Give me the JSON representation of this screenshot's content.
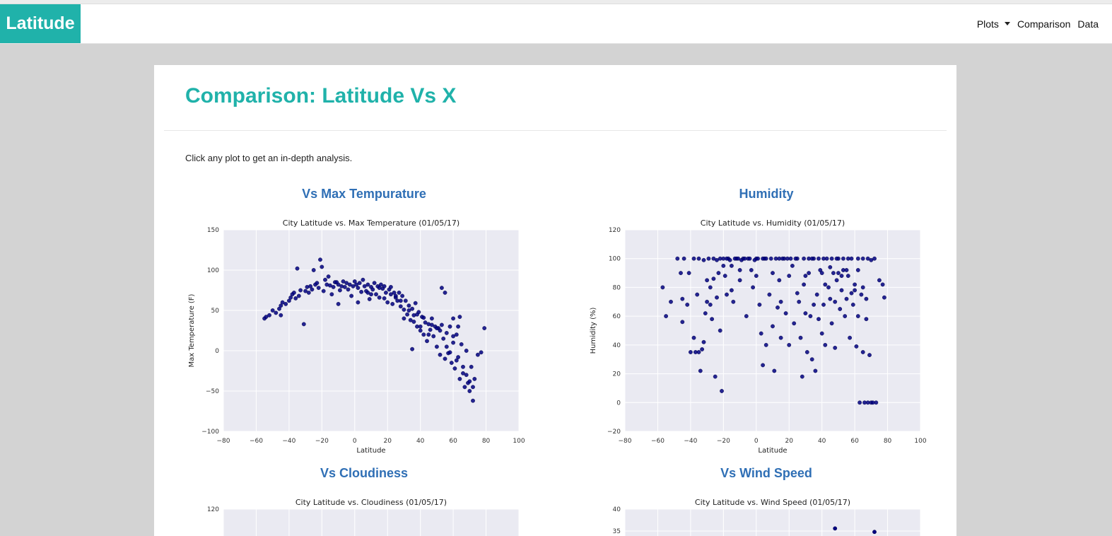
{
  "navbar": {
    "brand": "Latitude",
    "items": [
      {
        "label": "Plots",
        "has_dropdown": true
      },
      {
        "label": "Comparison"
      },
      {
        "label": "Data"
      }
    ]
  },
  "page": {
    "title": "Comparison: Latitude Vs X",
    "intro": "Click any plot to get an in-depth analysis."
  },
  "colors": {
    "brand": "#20b2aa",
    "heading": "#2f6fb5",
    "plot_bg": "#eaeaf2",
    "marker": "#000080"
  },
  "chart_data": [
    {
      "heading": "Vs Max Tempurature",
      "type": "scatter",
      "title": "City Latitude vs. Max Temperature (01/05/17)",
      "xlabel": "Latitude",
      "ylabel": "Max Temperature (F)",
      "xlim": [
        -80,
        100
      ],
      "ylim": [
        -100,
        150
      ],
      "xticks": [
        -80,
        -60,
        -40,
        -20,
        0,
        20,
        40,
        60,
        80,
        100
      ],
      "yticks": [
        -100,
        -50,
        0,
        50,
        100,
        150
      ],
      "grid": true,
      "points": [
        [
          -55,
          40
        ],
        [
          -54,
          42
        ],
        [
          -52,
          44
        ],
        [
          -48,
          47
        ],
        [
          -46,
          52
        ],
        [
          -45,
          56
        ],
        [
          -44,
          60
        ],
        [
          -42,
          58
        ],
        [
          -40,
          62
        ],
        [
          -39,
          66
        ],
        [
          -38,
          70
        ],
        [
          -37,
          72
        ],
        [
          -36,
          65
        ],
        [
          -35,
          102
        ],
        [
          -34,
          68
        ],
        [
          -33,
          75
        ],
        [
          -31,
          33
        ],
        [
          -30,
          74
        ],
        [
          -29,
          79
        ],
        [
          -28,
          72
        ],
        [
          -27,
          80
        ],
        [
          -26,
          76
        ],
        [
          -25,
          100
        ],
        [
          -24,
          82
        ],
        [
          -23,
          84
        ],
        [
          -22,
          78
        ],
        [
          -21,
          113
        ],
        [
          -20,
          104
        ],
        [
          -19,
          74
        ],
        [
          -18,
          88
        ],
        [
          -17,
          82
        ],
        [
          -16,
          92
        ],
        [
          -15,
          81
        ],
        [
          -14,
          70
        ],
        [
          -13,
          79
        ],
        [
          -12,
          85
        ],
        [
          -11,
          85
        ],
        [
          -10,
          82
        ],
        [
          -9,
          75
        ],
        [
          -8,
          80
        ],
        [
          -7,
          86
        ],
        [
          -6,
          79
        ],
        [
          -5,
          84
        ],
        [
          -4,
          76
        ],
        [
          -3,
          82
        ],
        [
          -2,
          68
        ],
        [
          -1,
          80
        ],
        [
          0,
          86
        ],
        [
          1,
          82
        ],
        [
          2,
          78
        ],
        [
          3,
          84
        ],
        [
          4,
          73
        ],
        [
          5,
          88
        ],
        [
          6,
          80
        ],
        [
          7,
          74
        ],
        [
          8,
          82
        ],
        [
          9,
          64
        ],
        [
          10,
          79
        ],
        [
          11,
          76
        ],
        [
          12,
          84
        ],
        [
          13,
          70
        ],
        [
          14,
          80
        ],
        [
          15,
          66
        ],
        [
          16,
          82
        ],
        [
          17,
          77
        ],
        [
          18,
          80
        ],
        [
          19,
          72
        ],
        [
          20,
          60
        ],
        [
          21,
          76
        ],
        [
          22,
          79
        ],
        [
          23,
          58
        ],
        [
          24,
          72
        ],
        [
          25,
          66
        ],
        [
          26,
          62
        ],
        [
          27,
          72
        ],
        [
          28,
          55
        ],
        [
          29,
          68
        ],
        [
          30,
          51
        ],
        [
          31,
          62
        ],
        [
          32,
          45
        ],
        [
          33,
          56
        ],
        [
          34,
          38
        ],
        [
          35,
          52
        ],
        [
          36,
          44
        ],
        [
          37,
          59
        ],
        [
          38,
          30
        ],
        [
          39,
          48
        ],
        [
          40,
          25
        ],
        [
          41,
          42
        ],
        [
          42,
          20
        ],
        [
          43,
          35
        ],
        [
          44,
          12
        ],
        [
          45,
          33
        ],
        [
          46,
          26
        ],
        [
          47,
          40
        ],
        [
          48,
          18
        ],
        [
          49,
          30
        ],
        [
          50,
          5
        ],
        [
          51,
          28
        ],
        [
          52,
          -5
        ],
        [
          53,
          32
        ],
        [
          54,
          15
        ],
        [
          55,
          -10
        ],
        [
          56,
          22
        ],
        [
          57,
          -3
        ],
        [
          58,
          30
        ],
        [
          59,
          -15
        ],
        [
          60,
          10
        ],
        [
          61,
          -22
        ],
        [
          62,
          20
        ],
        [
          63,
          -8
        ],
        [
          64,
          -35
        ],
        [
          65,
          8
        ],
        [
          66,
          -28
        ],
        [
          67,
          -45
        ],
        [
          68,
          0
        ],
        [
          69,
          -40
        ],
        [
          70,
          -50
        ],
        [
          71,
          -20
        ],
        [
          72,
          -62
        ],
        [
          73,
          -35
        ],
        [
          75,
          -5
        ],
        [
          77,
          -2
        ],
        [
          79,
          28
        ],
        [
          53,
          78
        ],
        [
          55,
          72
        ],
        [
          38,
          45
        ],
        [
          42,
          41
        ],
        [
          35,
          2
        ],
        [
          60,
          40
        ],
        [
          64,
          42
        ],
        [
          -45,
          44
        ],
        [
          -50,
          50
        ],
        [
          -10,
          58
        ],
        [
          2,
          60
        ],
        [
          8,
          72
        ],
        [
          10,
          70
        ],
        [
          18,
          65
        ],
        [
          22,
          70
        ],
        [
          30,
          40
        ],
        [
          36,
          36
        ],
        [
          45,
          20
        ],
        [
          50,
          28
        ],
        [
          56,
          5
        ],
        [
          58,
          -2
        ],
        [
          62,
          -12
        ],
        [
          66,
          -20
        ],
        [
          68,
          -30
        ],
        [
          70,
          -38
        ],
        [
          72,
          -45
        ],
        [
          15,
          78
        ],
        [
          25,
          68
        ],
        [
          28,
          62
        ],
        [
          33,
          50
        ],
        [
          40,
          30
        ],
        [
          47,
          32
        ],
        [
          52,
          25
        ],
        [
          60,
          18
        ],
        [
          63,
          30
        ]
      ]
    },
    {
      "heading": "Humidity",
      "type": "scatter",
      "title": "City Latitude vs. Humidity (01/05/17)",
      "xlabel": "Latitude",
      "ylabel": "Humidity (%)",
      "xlim": [
        -80,
        100
      ],
      "ylim": [
        -20,
        120
      ],
      "xticks": [
        -80,
        -60,
        -40,
        -20,
        0,
        20,
        40,
        60,
        80,
        100
      ],
      "yticks": [
        -20,
        0,
        20,
        40,
        60,
        80,
        100,
        120
      ],
      "grid": true,
      "points": [
        [
          -57,
          80
        ],
        [
          -55,
          60
        ],
        [
          -52,
          70
        ],
        [
          -48,
          100
        ],
        [
          -46,
          90
        ],
        [
          -45,
          56
        ],
        [
          -45,
          72
        ],
        [
          -42,
          68
        ],
        [
          -41,
          90
        ],
        [
          -40,
          35
        ],
        [
          -38,
          45
        ],
        [
          -37,
          35
        ],
        [
          -36,
          75
        ],
        [
          -35,
          35
        ],
        [
          -34,
          22
        ],
        [
          -33,
          37
        ],
        [
          -32,
          42
        ],
        [
          -31,
          62
        ],
        [
          -30,
          85
        ],
        [
          -29,
          100
        ],
        [
          -28,
          68
        ],
        [
          -27,
          58
        ],
        [
          -26,
          86
        ],
        [
          -25,
          18
        ],
        [
          -24,
          73
        ],
        [
          -23,
          90
        ],
        [
          -22,
          50
        ],
        [
          -21,
          8
        ],
        [
          -20,
          100
        ],
        [
          -19,
          88
        ],
        [
          -18,
          75
        ],
        [
          -17,
          100
        ],
        [
          -15,
          95
        ],
        [
          -14,
          70
        ],
        [
          -12,
          100
        ],
        [
          -10,
          85
        ],
        [
          -8,
          100
        ],
        [
          -6,
          60
        ],
        [
          -5,
          100
        ],
        [
          -3,
          92
        ],
        [
          -2,
          80
        ],
        [
          0,
          100
        ],
        [
          2,
          68
        ],
        [
          3,
          48
        ],
        [
          4,
          26
        ],
        [
          5,
          100
        ],
        [
          6,
          40
        ],
        [
          8,
          75
        ],
        [
          10,
          53
        ],
        [
          11,
          22
        ],
        [
          12,
          100
        ],
        [
          13,
          66
        ],
        [
          14,
          85
        ],
        [
          15,
          45
        ],
        [
          17,
          100
        ],
        [
          18,
          62
        ],
        [
          20,
          40
        ],
        [
          22,
          95
        ],
        [
          23,
          55
        ],
        [
          25,
          100
        ],
        [
          26,
          70
        ],
        [
          27,
          45
        ],
        [
          28,
          18
        ],
        [
          29,
          82
        ],
        [
          30,
          62
        ],
        [
          31,
          35
        ],
        [
          32,
          90
        ],
        [
          33,
          60
        ],
        [
          34,
          30
        ],
        [
          35,
          100
        ],
        [
          36,
          22
        ],
        [
          37,
          75
        ],
        [
          38,
          58
        ],
        [
          39,
          92
        ],
        [
          40,
          48
        ],
        [
          41,
          68
        ],
        [
          42,
          40
        ],
        [
          43,
          100
        ],
        [
          44,
          80
        ],
        [
          45,
          72
        ],
        [
          46,
          55
        ],
        [
          47,
          90
        ],
        [
          48,
          38
        ],
        [
          49,
          85
        ],
        [
          50,
          100
        ],
        [
          51,
          65
        ],
        [
          52,
          78
        ],
        [
          53,
          92
        ],
        [
          54,
          60
        ],
        [
          55,
          72
        ],
        [
          56,
          88
        ],
        [
          57,
          45
        ],
        [
          58,
          100
        ],
        [
          59,
          68
        ],
        [
          60,
          82
        ],
        [
          61,
          39
        ],
        [
          62,
          60
        ],
        [
          63,
          0
        ],
        [
          64,
          75
        ],
        [
          65,
          35
        ],
        [
          66,
          0
        ],
        [
          67,
          58
        ],
        [
          68,
          0
        ],
        [
          69,
          33
        ],
        [
          70,
          0
        ],
        [
          71,
          0
        ],
        [
          72,
          100
        ],
        [
          73,
          0
        ],
        [
          75,
          85
        ],
        [
          77,
          82
        ],
        [
          78,
          73
        ],
        [
          -44,
          100
        ],
        [
          -38,
          100
        ],
        [
          -35,
          100
        ],
        [
          -32,
          99
        ],
        [
          -26,
          100
        ],
        [
          -24,
          99
        ],
        [
          -22,
          100
        ],
        [
          -18,
          100
        ],
        [
          -16,
          99
        ],
        [
          -13,
          100
        ],
        [
          -11,
          100
        ],
        [
          -9,
          99
        ],
        [
          -7,
          100
        ],
        [
          -4,
          100
        ],
        [
          -1,
          99
        ],
        [
          1,
          100
        ],
        [
          4,
          100
        ],
        [
          6,
          100
        ],
        [
          9,
          100
        ],
        [
          14,
          100
        ],
        [
          16,
          100
        ],
        [
          19,
          100
        ],
        [
          21,
          100
        ],
        [
          24,
          100
        ],
        [
          29,
          100
        ],
        [
          32,
          100
        ],
        [
          34,
          100
        ],
        [
          38,
          100
        ],
        [
          41,
          100
        ],
        [
          46,
          100
        ],
        [
          49,
          100
        ],
        [
          53,
          100
        ],
        [
          56,
          100
        ],
        [
          62,
          100
        ],
        [
          65,
          100
        ],
        [
          68,
          100
        ],
        [
          70,
          99
        ],
        [
          -30,
          70
        ],
        [
          -20,
          95
        ],
        [
          -10,
          92
        ],
        [
          10,
          90
        ],
        [
          20,
          88
        ],
        [
          30,
          88
        ],
        [
          40,
          90
        ],
        [
          45,
          94
        ],
        [
          50,
          90
        ],
        [
          55,
          92
        ],
        [
          60,
          78
        ],
        [
          65,
          80
        ],
        [
          -28,
          80
        ],
        [
          -15,
          78
        ],
        [
          0,
          88
        ],
        [
          15,
          70
        ],
        [
          25,
          76
        ],
        [
          35,
          68
        ],
        [
          42,
          82
        ],
        [
          48,
          70
        ],
        [
          52,
          88
        ],
        [
          58,
          76
        ],
        [
          62,
          92
        ],
        [
          67,
          72
        ]
      ]
    },
    {
      "heading": "Vs Cloudiness",
      "type": "scatter",
      "title": "City Latitude vs. Cloudiness (01/05/17)",
      "ylim_top_tick": 120,
      "yticks": [
        120
      ]
    },
    {
      "heading": "Vs Wind Speed",
      "type": "scatter",
      "title": "City Latitude vs. Wind Speed (01/05/17)",
      "yticks": [
        40,
        35
      ],
      "points": [
        [
          48,
          35.6
        ],
        [
          72,
          34.8
        ]
      ]
    }
  ]
}
